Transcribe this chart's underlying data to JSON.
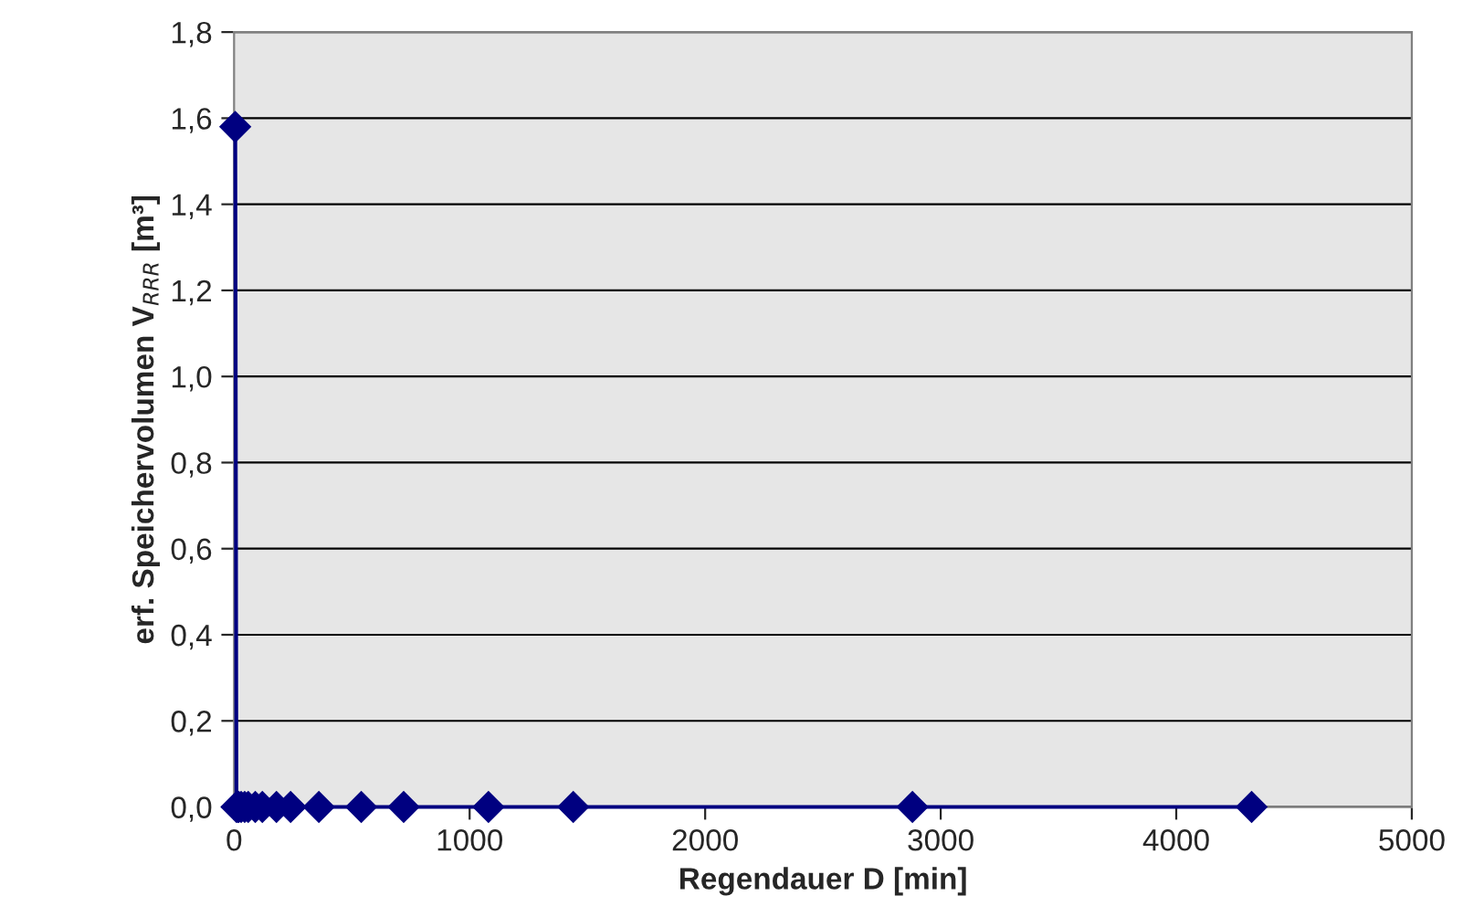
{
  "chart_data": {
    "type": "line",
    "xlabel": "Regendauer D [min]",
    "ylabel": "erf. Speichervolumen V$_{RRR}$ [m³]",
    "x": [
      5,
      10,
      15,
      20,
      30,
      45,
      60,
      90,
      120,
      180,
      240,
      360,
      540,
      720,
      1080,
      1440,
      2880,
      4320
    ],
    "series": [
      {
        "color": "#000080",
        "values": [
          1.58,
          0,
          0,
          0,
          0,
          0,
          0,
          0,
          0,
          0,
          0,
          0,
          0,
          0,
          0,
          0,
          0,
          0
        ]
      }
    ],
    "xlim": [
      0,
      5000
    ],
    "xticks": [
      0,
      1000,
      2000,
      3000,
      4000,
      5000
    ],
    "ylim": [
      0,
      1.8
    ],
    "yticks": [
      {
        "value": 0,
        "label": "0,0"
      },
      {
        "value": 0.2,
        "label": "0,2"
      },
      {
        "value": 0.4,
        "label": "0,4"
      },
      {
        "value": 0.6,
        "label": "0,6"
      },
      {
        "value": 0.8,
        "label": "0,8"
      },
      {
        "value": 1.0,
        "label": "1,0"
      },
      {
        "value": 1.2,
        "label": "1,2"
      },
      {
        "value": 1.4,
        "label": "1,4"
      },
      {
        "value": 1.6,
        "label": "1,6"
      },
      {
        "value": 1.8,
        "label": "1,8"
      }
    ],
    "grid": "y",
    "marker": "diamond",
    "line_style": "solid",
    "legend": false
  }
}
